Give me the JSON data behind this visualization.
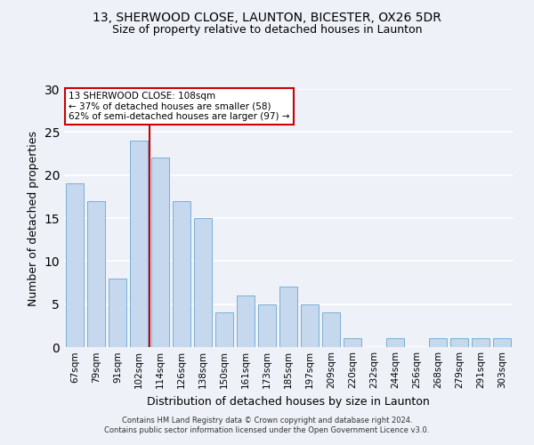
{
  "title1": "13, SHERWOOD CLOSE, LAUNTON, BICESTER, OX26 5DR",
  "title2": "Size of property relative to detached houses in Launton",
  "xlabel": "Distribution of detached houses by size in Launton",
  "ylabel": "Number of detached properties",
  "bar_labels": [
    "67sqm",
    "79sqm",
    "91sqm",
    "102sqm",
    "114sqm",
    "126sqm",
    "138sqm",
    "150sqm",
    "161sqm",
    "173sqm",
    "185sqm",
    "197sqm",
    "209sqm",
    "220sqm",
    "232sqm",
    "244sqm",
    "256sqm",
    "268sqm",
    "279sqm",
    "291sqm",
    "303sqm"
  ],
  "bar_values": [
    19,
    17,
    8,
    24,
    22,
    17,
    15,
    4,
    6,
    5,
    7,
    5,
    4,
    1,
    0,
    1,
    0,
    1,
    1,
    1,
    1
  ],
  "bar_color": "#c5d8ed",
  "bar_edge_color": "#7aafd4",
  "vline_color": "#cc0000",
  "vline_pos": 3.5,
  "annotation_title": "13 SHERWOOD CLOSE: 108sqm",
  "annotation_line1": "← 37% of detached houses are smaller (58)",
  "annotation_line2": "62% of semi-detached houses are larger (97) →",
  "annotation_box_color": "#ffffff",
  "annotation_box_edge": "#cc0000",
  "ylim": [
    0,
    30
  ],
  "yticks": [
    0,
    5,
    10,
    15,
    20,
    25,
    30
  ],
  "footer1": "Contains HM Land Registry data © Crown copyright and database right 2024.",
  "footer2": "Contains public sector information licensed under the Open Government Licence v3.0.",
  "background_color": "#eef2f8",
  "grid_color": "#ffffff",
  "title1_fontsize": 10,
  "title2_fontsize": 9
}
